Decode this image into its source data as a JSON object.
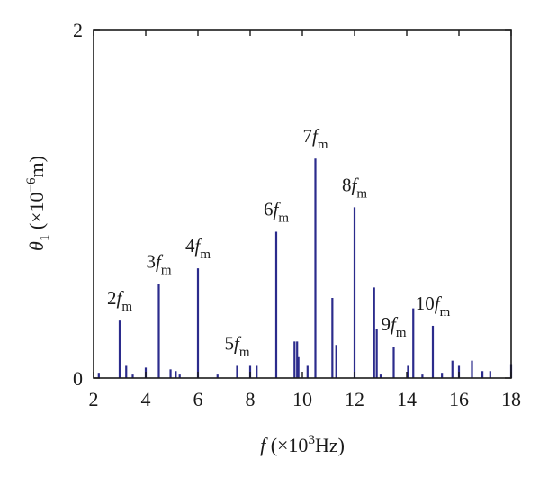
{
  "chart_data": {
    "type": "bar",
    "xlim": [
      2,
      18
    ],
    "ylim": [
      0,
      2
    ],
    "x_ticks": [
      "2",
      "4",
      "6",
      "8",
      "10",
      "12",
      "14",
      "16",
      "18"
    ],
    "y_ticks": [
      "0",
      "2"
    ],
    "xlabel": {
      "symbol": "f",
      "open": " (×10",
      "power": "3",
      "close": "Hz)"
    },
    "ylabel": {
      "symbol": "θ",
      "sub": "1",
      "open": " (×10",
      "power": "−6",
      "close": "m)"
    },
    "bar_color": "#2b2b8c",
    "harmonics": [
      {
        "order": "2",
        "x": 3.0,
        "y": 0.33
      },
      {
        "order": "3",
        "x": 4.5,
        "y": 0.54
      },
      {
        "order": "4",
        "x": 6.0,
        "y": 0.63
      },
      {
        "order": "5",
        "x": 7.5,
        "y": 0.07
      },
      {
        "order": "6",
        "x": 9.0,
        "y": 0.84
      },
      {
        "order": "7",
        "x": 10.5,
        "y": 1.26
      },
      {
        "order": "8",
        "x": 12.0,
        "y": 0.98
      },
      {
        "order": "9",
        "x": 13.5,
        "y": 0.18
      },
      {
        "order": "10",
        "x": 15.0,
        "y": 0.3
      }
    ],
    "harmonic_suffix": "f",
    "harmonic_sub": "m",
    "other_lines": [
      {
        "x": 2.2,
        "y": 0.03
      },
      {
        "x": 3.25,
        "y": 0.07
      },
      {
        "x": 3.5,
        "y": 0.02
      },
      {
        "x": 4.0,
        "y": 0.06
      },
      {
        "x": 4.95,
        "y": 0.05
      },
      {
        "x": 5.15,
        "y": 0.04
      },
      {
        "x": 5.3,
        "y": 0.02
      },
      {
        "x": 6.75,
        "y": 0.02
      },
      {
        "x": 8.0,
        "y": 0.07
      },
      {
        "x": 8.25,
        "y": 0.07
      },
      {
        "x": 9.7,
        "y": 0.21
      },
      {
        "x": 9.8,
        "y": 0.21
      },
      {
        "x": 9.85,
        "y": 0.12
      },
      {
        "x": 10.2,
        "y": 0.07
      },
      {
        "x": 11.15,
        "y": 0.46
      },
      {
        "x": 11.3,
        "y": 0.19
      },
      {
        "x": 12.75,
        "y": 0.52
      },
      {
        "x": 12.85,
        "y": 0.28
      },
      {
        "x": 13.0,
        "y": 0.02
      },
      {
        "x": 14.05,
        "y": 0.07
      },
      {
        "x": 14.25,
        "y": 0.4
      },
      {
        "x": 14.6,
        "y": 0.02
      },
      {
        "x": 15.35,
        "y": 0.03
      },
      {
        "x": 15.75,
        "y": 0.1
      },
      {
        "x": 16.0,
        "y": 0.07
      },
      {
        "x": 16.5,
        "y": 0.1
      },
      {
        "x": 16.9,
        "y": 0.04
      },
      {
        "x": 17.2,
        "y": 0.04
      },
      {
        "x": 18.0,
        "y": 0.08
      }
    ]
  }
}
